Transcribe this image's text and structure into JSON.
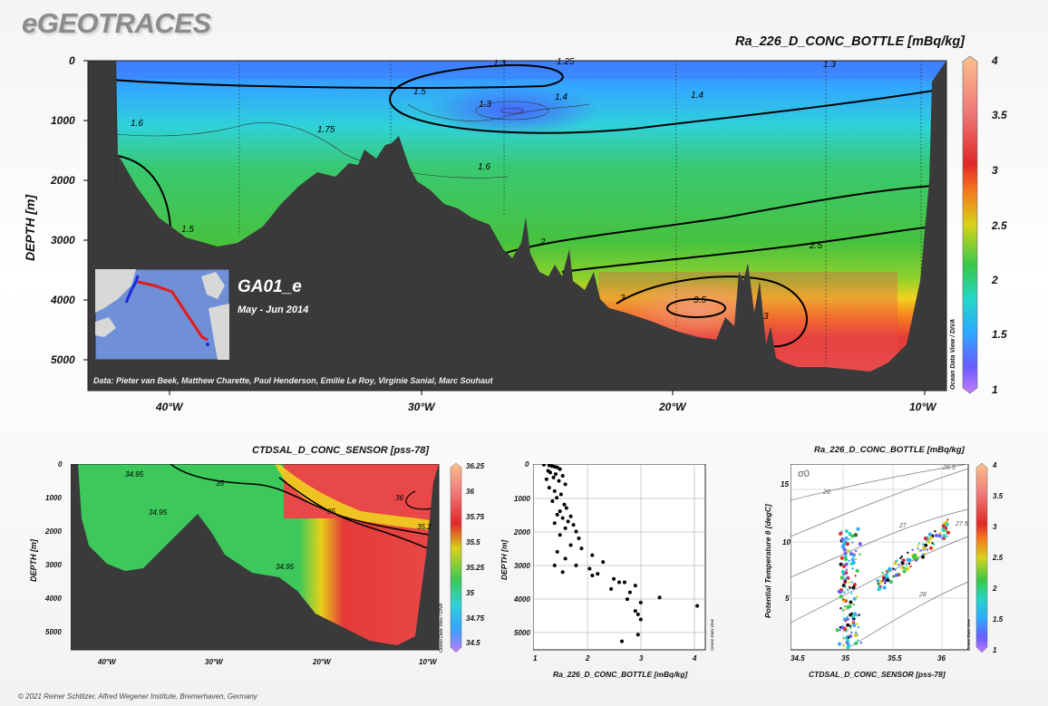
{
  "brand": "eGEOTRACES",
  "main": {
    "title": "Ra_226_D_CONC_BOTTLE [mBq/kg]",
    "ylabel": "DEPTH [m]",
    "yticks": [
      "0",
      "1000",
      "2000",
      "3000",
      "4000",
      "5000"
    ],
    "xticks": [
      "40°W",
      "30°W",
      "20°W",
      "10°W"
    ],
    "section_name": "GA01_e",
    "section_date": "May - Jun 2014",
    "data_credit": "Data: Pieter van Beek, Matthew Charette, Paul Henderson, Emilie Le Roy, Virginie Sanial, Marc Souhaut",
    "watermark": "Ocean Data View / DIVA",
    "colorbar_ticks": [
      "4",
      "3.5",
      "3",
      "2.5",
      "2",
      "1.5",
      "1"
    ],
    "contour_labels": [
      "1.3",
      "1.25",
      "1.3",
      "1.5",
      "1.4",
      "1.3",
      "1.4",
      "1.6",
      "1.75",
      "1.6",
      "1.5",
      "2",
      "2.5",
      "3",
      "3.5",
      "3"
    ],
    "colors": {
      "land": "#3a3a3a",
      "low": "#8a4dff",
      "blue": "#3aa0ff",
      "green": "#3cc85a",
      "yellow": "#f2d21e",
      "red": "#e63a3a",
      "high": "#f8c090"
    }
  },
  "salinity": {
    "title": "CTDSAL_D_CONC_SENSOR [pss-78]",
    "ylabel": "DEPTH [m]",
    "yticks": [
      "0",
      "1000",
      "2000",
      "3000",
      "4000",
      "5000"
    ],
    "xticks": [
      "40°W",
      "30°W",
      "20°W",
      "10°W"
    ],
    "colorbar_ticks": [
      "36.25",
      "36",
      "35.75",
      "35.5",
      "35.25",
      "35",
      "34.75",
      "34.5"
    ],
    "contour_labels": [
      "34.95",
      "35",
      "34.95",
      "35",
      "36",
      "35.2",
      "34.95"
    ],
    "watermark": "Ocean Data View / DIVA"
  },
  "profile": {
    "xlabel": "Ra_226_D_CONC_BOTTLE [mBq/kg]",
    "ylabel": "DEPTH [m]",
    "xticks": [
      "1",
      "2",
      "3",
      "4"
    ],
    "yticks": [
      "0",
      "1000",
      "2000",
      "3000",
      "4000",
      "5000"
    ],
    "watermark": "Ocean Data View"
  },
  "ts": {
    "title": "Ra_226_D_CONC_BOTTLE [mBq/kg]",
    "xlabel": "CTDSAL_D_CONC_SENSOR [pss-78]",
    "ylabel": "Potential Temperature θ [degC]",
    "xticks": [
      "34.5",
      "35",
      "35.5",
      "36"
    ],
    "yticks": [
      "15",
      "10",
      "5"
    ],
    "colorbar_ticks": [
      "4",
      "3.5",
      "3",
      "2.5",
      "2",
      "1.5",
      "1"
    ],
    "sigma_label": "σ0",
    "isopycnal_labels": [
      "26",
      "26.5",
      "27",
      "27.5",
      "28"
    ],
    "watermark": "Ocean Data View"
  },
  "footer": "© 2021 Reiner Schlitzer, Alfred Wegener Institute, Bremerhaven, Germany",
  "chart_data": [
    {
      "type": "heatmap",
      "title": "Ra_226_D_CONC_BOTTLE [mBq/kg]",
      "xlabel": "",
      "ylabel": "DEPTH [m]",
      "xlim": [
        -44,
        -9
      ],
      "ylim": [
        5500,
        0
      ],
      "colorbar_range": [
        1,
        4
      ],
      "contour_levels": [
        1.25,
        1.3,
        1.4,
        1.5,
        1.6,
        1.75,
        2,
        2.5,
        3,
        3.5
      ]
    },
    {
      "type": "heatmap",
      "title": "CTDSAL_D_CONC_SENSOR [pss-78]",
      "xlabel": "",
      "ylabel": "DEPTH [m]",
      "xlim": [
        -44,
        -9
      ],
      "ylim": [
        5500,
        0
      ],
      "colorbar_range": [
        34.5,
        36.25
      ],
      "contour_levels": [
        34.95,
        35,
        35.2,
        36
      ]
    },
    {
      "type": "scatter",
      "title": "",
      "xlabel": "Ra_226_D_CONC_BOTTLE [mBq/kg]",
      "ylabel": "DEPTH [m]",
      "xlim": [
        1,
        4.2
      ],
      "ylim": [
        5500,
        0
      ],
      "x": [
        1.2,
        1.3,
        1.35,
        1.4,
        1.45,
        1.5,
        1.28,
        1.32,
        1.42,
        1.55,
        1.38,
        1.25,
        1.48,
        1.6,
        1.3,
        1.4,
        1.52,
        1.44,
        1.36,
        1.58,
        1.62,
        1.5,
        1.45,
        1.7,
        1.55,
        1.65,
        1.4,
        1.75,
        1.6,
        1.8,
        1.5,
        1.85,
        1.7,
        1.9,
        1.45,
        2.1,
        1.6,
        2.3,
        1.8,
        1.4,
        2.05,
        2.2,
        1.55,
        2.5,
        2.6,
        2.1,
        2.9,
        2.45,
        2.7,
        2.8,
        3.0,
        2.75,
        3.35,
        2.9,
        4.05,
        2.95,
        3.0,
        2.65,
        2.95
      ],
      "y": [
        20,
        40,
        60,
        80,
        100,
        150,
        200,
        250,
        300,
        350,
        400,
        450,
        500,
        600,
        700,
        800,
        900,
        1000,
        1100,
        1200,
        1300,
        1400,
        1500,
        1550,
        1600,
        1700,
        1750,
        1800,
        1900,
        2000,
        2100,
        2200,
        2400,
        2500,
        2600,
        2700,
        2800,
        2900,
        3000,
        3000,
        3100,
        3250,
        3200,
        3400,
        3500,
        3300,
        3600,
        3700,
        3500,
        3800,
        4100,
        4000,
        3950,
        4350,
        4200,
        4450,
        4600,
        5250,
        5050
      ],
      "ylabel_note": ""
    },
    {
      "type": "scatter",
      "title": "Ra_226_D_CONC_BOTTLE [mBq/kg]",
      "xlabel": "CTDSAL_D_CONC_SENSOR [pss-78]",
      "ylabel": "Potential Temperature θ [degC]",
      "xlim": [
        34.45,
        36.25
      ],
      "ylim": [
        1,
        17
      ],
      "colorbar_range": [
        1,
        4
      ]
    }
  ]
}
